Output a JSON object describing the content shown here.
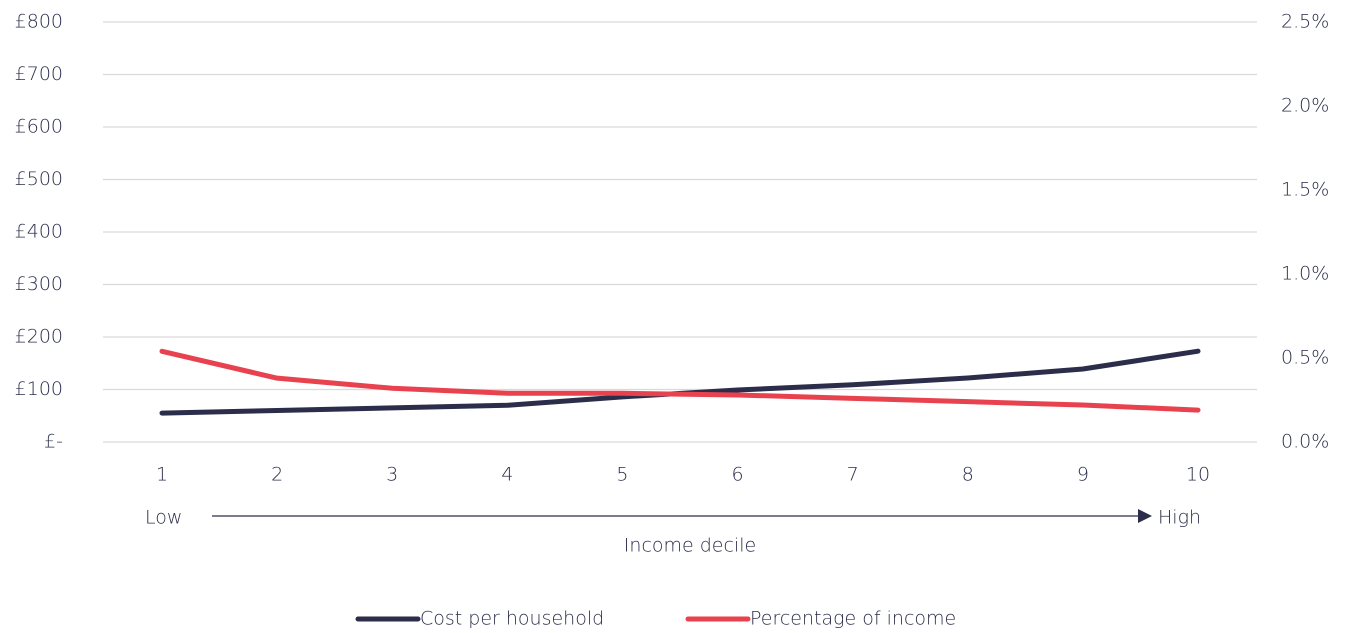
{
  "chart_data": {
    "type": "line",
    "categories": [
      "1",
      "2",
      "3",
      "4",
      "5",
      "6",
      "7",
      "8",
      "9",
      "10"
    ],
    "x_label": "Income decile",
    "x_low_label": "Low",
    "x_high_label": "High",
    "series": [
      {
        "name": "Cost per household",
        "color": "#2b2d4a",
        "values": [
          55,
          60,
          65,
          70,
          86,
          99,
          109,
          122,
          139,
          173
        ]
      },
      {
        "name": "Percentage of income",
        "color": "#e8424f",
        "axis": "y2",
        "values": [
          0.54,
          0.38,
          0.32,
          0.29,
          0.29,
          0.28,
          0.26,
          0.24,
          0.22,
          0.19
        ]
      }
    ],
    "ylim": [
      0,
      800
    ],
    "yticks": [
      {
        "value": 0,
        "label": "£-"
      },
      {
        "value": 100,
        "label": "£100"
      },
      {
        "value": 200,
        "label": "£200"
      },
      {
        "value": 300,
        "label": "£300"
      },
      {
        "value": 400,
        "label": "£400"
      },
      {
        "value": 500,
        "label": "£500"
      },
      {
        "value": 600,
        "label": "£600"
      },
      {
        "value": 700,
        "label": "£700"
      },
      {
        "value": 800,
        "label": "£800"
      }
    ],
    "y2lim": [
      0,
      2.5
    ],
    "y2ticks": [
      {
        "value": 0,
        "label": "0.0%"
      },
      {
        "value": 0.5,
        "label": "0.5%"
      },
      {
        "value": 1.0,
        "label": "1.0%"
      },
      {
        "value": 1.5,
        "label": "1.5%"
      },
      {
        "value": 2.0,
        "label": "2.0%"
      },
      {
        "value": 2.5,
        "label": "2.5%"
      }
    ],
    "grid": true,
    "legend": "bottom"
  }
}
